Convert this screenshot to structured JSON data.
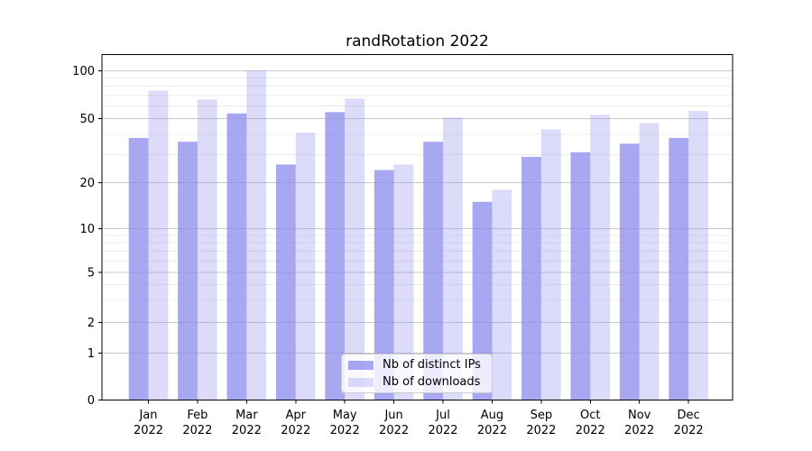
{
  "title": "randRotation 2022",
  "chart_data": {
    "type": "bar",
    "title": "randRotation 2022",
    "categories": [
      "Jan",
      "Feb",
      "Mar",
      "Apr",
      "May",
      "Jun",
      "Jul",
      "Aug",
      "Sep",
      "Oct",
      "Nov",
      "Dec"
    ],
    "category_year": "2022",
    "series": [
      {
        "name": "Nb of distinct IPs",
        "key": "distinct-ips",
        "color_rgb": "138,138,238",
        "alpha": 0.75,
        "values": [
          38,
          36,
          54,
          26,
          55,
          24,
          36,
          15,
          29,
          31,
          35,
          38
        ]
      },
      {
        "name": "Nb of downloads",
        "key": "downloads",
        "color_rgb": "138,138,238",
        "alpha": 0.3,
        "values": [
          75,
          66,
          100,
          41,
          67,
          26,
          51,
          18,
          43,
          53,
          47,
          56
        ]
      }
    ],
    "yscale": "symlog",
    "yticks": [
      0,
      1,
      2,
      5,
      10,
      20,
      50,
      100
    ],
    "ytick_labels": [
      "0",
      "1",
      "2",
      "5",
      "10",
      "20",
      "50",
      "100"
    ],
    "ylim": [
      0,
      127
    ],
    "grid": true,
    "legend_position": "lower center",
    "colors": {
      "bar_base": "#8a8aee",
      "major_grid": "#c9c9c9",
      "minor_grid": "#ececec",
      "spine": "#000000",
      "text": "#000000"
    }
  }
}
